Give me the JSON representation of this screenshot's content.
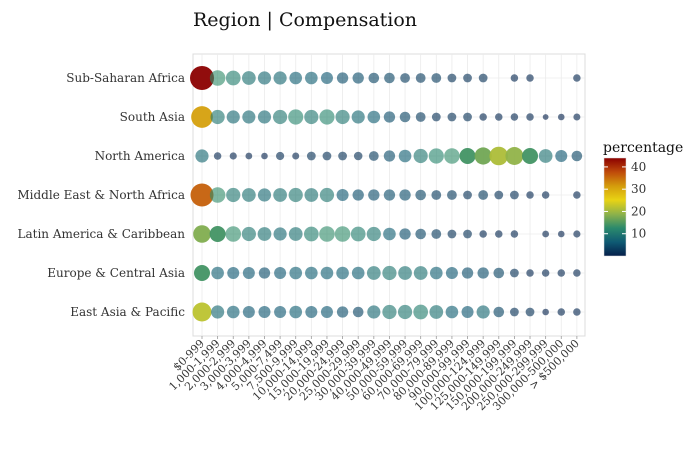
{
  "chart_data": {
    "type": "scatter",
    "title": "Region | Compensation",
    "xlabel": "",
    "ylabel": "",
    "grid": true,
    "legend_position": "right",
    "x_categories": [
      "$0-999",
      "1,000-1,999",
      "2,000-2,999",
      "3,000-3,999",
      "4,000-4,999",
      "5,000-7,499",
      "7,500-9,999",
      "10,000-14,999",
      "15,000-19,999",
      "20,000-24,999",
      "25,000-29,999",
      "30,000-39,999",
      "40,000-49,999",
      "50,000-59,999",
      "60,000-69,999",
      "70,000-79,999",
      "80,000-89,999",
      "90,000-99,999",
      "100,000-124,999",
      "125,000-149,999",
      "150,000-199,999",
      "200,000-249,999",
      "250,000-299,999",
      "300,000-500,000",
      "> $500,000"
    ],
    "y_categories": [
      "Sub-Saharan Africa",
      "South Asia",
      "North America",
      "Middle East & North Africa",
      "Latin America & Caribbean",
      "Europe & Central Asia",
      "East Asia & Pacific"
    ],
    "series": [
      {
        "region": "Sub-Saharan Africa",
        "values": [
          44,
          13,
          11,
          9,
          8,
          8,
          7,
          7,
          6,
          5,
          5,
          4,
          4,
          3,
          3,
          3,
          2,
          2,
          2,
          null,
          1,
          1,
          null,
          null,
          1
        ]
      },
      {
        "region": "South Asia",
        "values": [
          31,
          10,
          8,
          8,
          8,
          10,
          12,
          10,
          12,
          10,
          8,
          7,
          5,
          4,
          3,
          2,
          2,
          2,
          1,
          1,
          1,
          1,
          0.2,
          0.5,
          0.7
        ]
      },
      {
        "region": "North America",
        "values": [
          8,
          1,
          0.8,
          0.6,
          0.5,
          1.5,
          0.7,
          2,
          2,
          2,
          1.8,
          3,
          5,
          7,
          10,
          12,
          13,
          14,
          17,
          21,
          19,
          14,
          9,
          6,
          4
        ]
      },
      {
        "region": "Middle East & North Africa",
        "values": [
          36,
          13,
          10,
          9,
          8,
          9,
          10,
          9,
          10,
          6,
          5,
          5,
          5,
          5,
          4,
          3,
          3,
          2,
          3,
          2,
          2,
          1,
          1,
          null,
          1
        ]
      },
      {
        "region": "Latin America & Caribbean",
        "values": [
          18,
          14,
          13,
          10,
          9,
          8,
          9,
          11,
          13,
          13,
          11,
          10,
          7,
          5,
          4,
          3,
          2,
          2,
          1,
          1,
          1,
          null,
          0.6,
          0.5,
          0.8
        ]
      },
      {
        "region": "Europe & Central Asia",
        "values": [
          14,
          7,
          6,
          6,
          5,
          6,
          7,
          7,
          7,
          7,
          7,
          9,
          10,
          9,
          9,
          7,
          6,
          5,
          5,
          4,
          2,
          1,
          1,
          1,
          1
        ]
      },
      {
        "region": "East Asia & Pacific",
        "values": [
          22,
          8,
          7,
          6,
          6,
          6,
          7,
          6,
          6,
          5,
          4,
          8,
          10,
          10,
          11,
          9,
          7,
          6,
          8,
          4,
          2,
          2,
          0.5,
          1,
          1
        ]
      }
    ],
    "color_scale": {
      "title": "percentage",
      "ticks": [
        10,
        20,
        30,
        40
      ],
      "range": [
        0,
        44
      ],
      "colors": [
        "#051f4a",
        "#0f5a73",
        "#2b8a6c",
        "#8fb24a",
        "#e8d314",
        "#d49c0c",
        "#bf4a0a",
        "#8b0000"
      ]
    }
  }
}
